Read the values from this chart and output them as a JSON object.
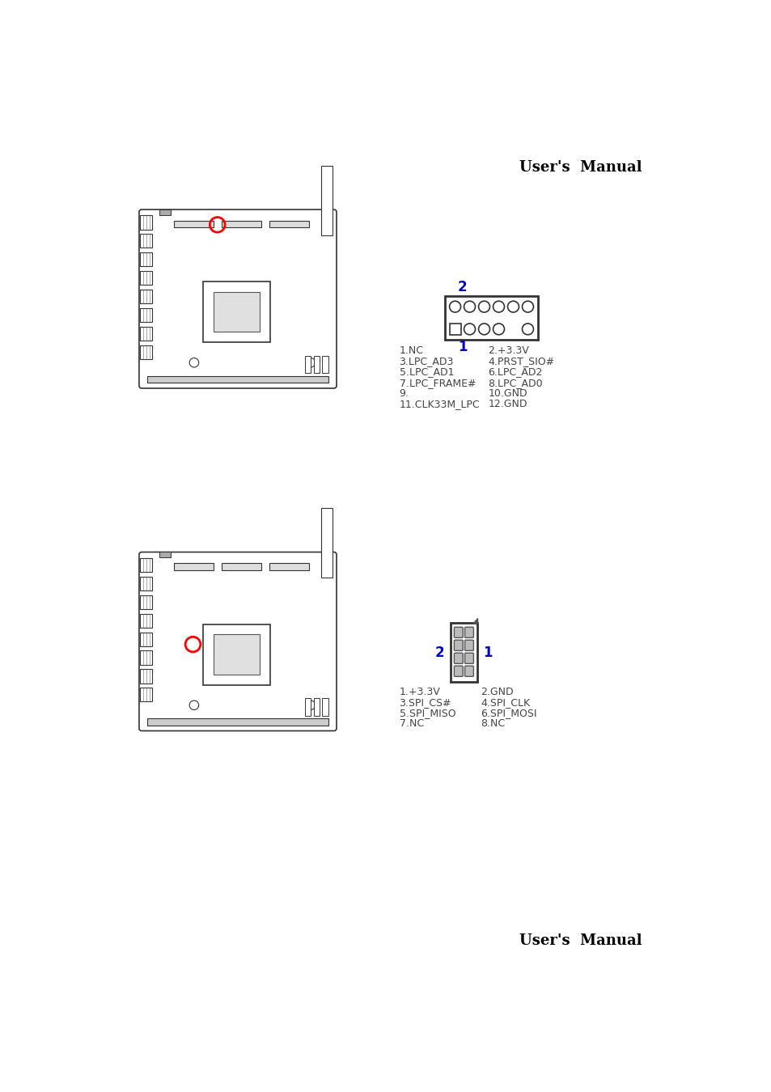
{
  "page_title_top": "User's  Manual",
  "page_title_bottom": "User's  Manual",
  "background_color": "#ffffff",
  "text_color": "#000000",
  "blue_color": "#0000cc",
  "section1": {
    "pin_descriptions": [
      "1.NC",
      "2.+3.3V",
      "3.LPC_AD3",
      "4.PRST_SIO#",
      "5.LPC_AD1",
      "6.LPC_AD2",
      "7.LPC_FRAME#",
      "8.LPC_AD0",
      "9.",
      "10.GND",
      "11.CLK33M_LPC",
      "12.GND"
    ]
  },
  "section2": {
    "pin_descriptions": [
      "1.+3.3V",
      "2.GND",
      "3.SPI_CS#",
      "4.SPI_CLK",
      "5.SPI_MISO",
      "6.SPI_MOSI",
      "7.NC",
      "8.NC"
    ]
  }
}
